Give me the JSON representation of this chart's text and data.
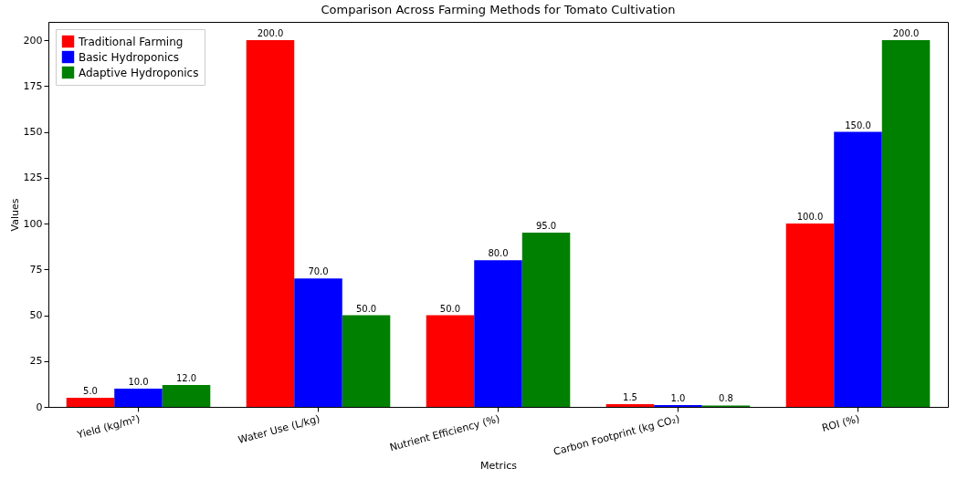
{
  "chart_data": {
    "type": "bar",
    "title": "Comparison Across Farming Methods for Tomato Cultivation",
    "xlabel": "Metrics",
    "ylabel": "Values",
    "categories": [
      "Yield (kg/m²)",
      "Water Use (L/kg)",
      "Nutrient Efficiency (%)",
      "Carbon Footprint (kg CO₂)",
      "ROI (%)"
    ],
    "series": [
      {
        "name": "Traditional Farming",
        "color": "#ff0000",
        "values": [
          5,
          200,
          50,
          1.5,
          100
        ],
        "value_labels": [
          "5.0",
          "200.0",
          "50.0",
          "1.5",
          "100.0"
        ]
      },
      {
        "name": "Basic Hydroponics",
        "color": "#0000ff",
        "values": [
          10,
          70,
          80,
          1.0,
          150
        ],
        "value_labels": [
          "10.0",
          "70.0",
          "80.0",
          "1.0",
          "150.0"
        ]
      },
      {
        "name": "Adaptive Hydroponics",
        "color": "#008000",
        "values": [
          12,
          50,
          95,
          0.8,
          200
        ],
        "value_labels": [
          "12.0",
          "50.0",
          "95.0",
          "0.8",
          "200.0"
        ]
      }
    ],
    "ylim": [
      0,
      210
    ],
    "yticks": [
      0,
      25,
      50,
      75,
      100,
      125,
      150,
      175,
      200
    ],
    "grid": false,
    "legend": "top left"
  }
}
